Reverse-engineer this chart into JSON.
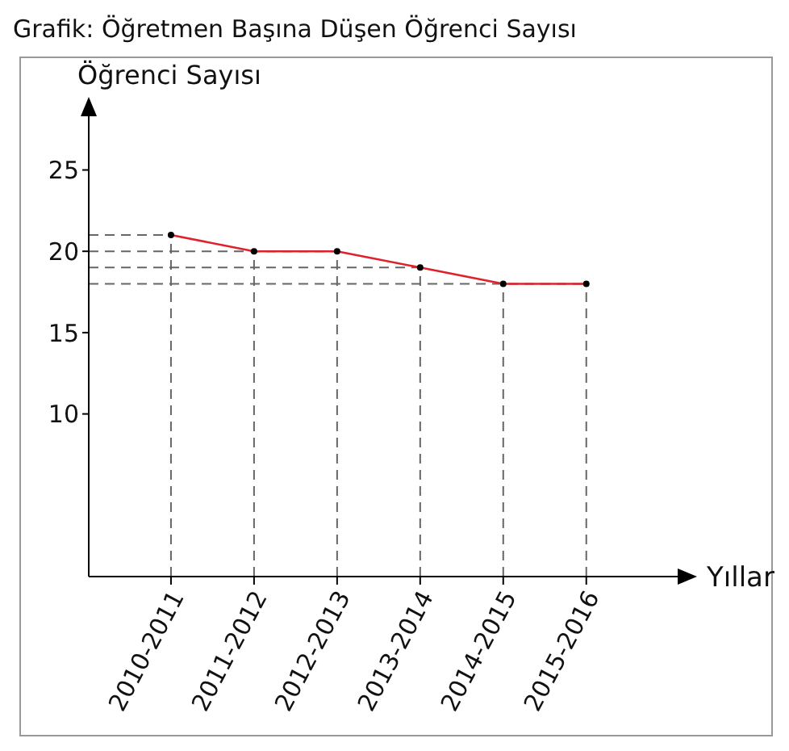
{
  "chart_data": {
    "type": "line",
    "title": "Grafik: Öğretmen Başına Düşen Öğrenci Sayısı",
    "xlabel": "Yıllar",
    "ylabel": "Öğrenci Sayısı",
    "categories": [
      "2010-2011",
      "2011-2012",
      "2012-2013",
      "2013-2014",
      "2014-2015",
      "2015-2016"
    ],
    "series": [
      {
        "color": "#e0202a",
        "values": [
          21,
          20,
          20,
          19,
          18,
          18
        ]
      }
    ],
    "ylim": [
      0,
      28.5
    ],
    "yticks": [
      10,
      15,
      20,
      25
    ],
    "ref_lines": [
      {
        "axis": "y",
        "value": 21,
        "color": "#666666",
        "line_style": "dashed"
      },
      {
        "axis": "y",
        "value": 20,
        "color": "#666666",
        "line_style": "dashed"
      },
      {
        "axis": "y",
        "value": 19,
        "color": "#666666",
        "line_style": "dashed"
      },
      {
        "axis": "y",
        "value": 18,
        "color": "#666666",
        "line_style": "dashed"
      },
      {
        "axis": "x",
        "value": "2010-2011",
        "color": "#666666",
        "line_style": "dashed"
      },
      {
        "axis": "x",
        "value": "2011-2012",
        "color": "#666666",
        "line_style": "dashed"
      },
      {
        "axis": "x",
        "value": "2012-2013",
        "color": "#666666",
        "line_style": "dashed"
      },
      {
        "axis": "x",
        "value": "2013-2014",
        "color": "#666666",
        "line_style": "dashed"
      },
      {
        "axis": "x",
        "value": "2014-2015",
        "color": "#666666",
        "line_style": "dashed"
      },
      {
        "axis": "x",
        "value": "2015-2016",
        "color": "#666666",
        "line_style": "dashed"
      }
    ],
    "grid": false,
    "legend": false,
    "marker": "circle",
    "line_style": "solid"
  }
}
